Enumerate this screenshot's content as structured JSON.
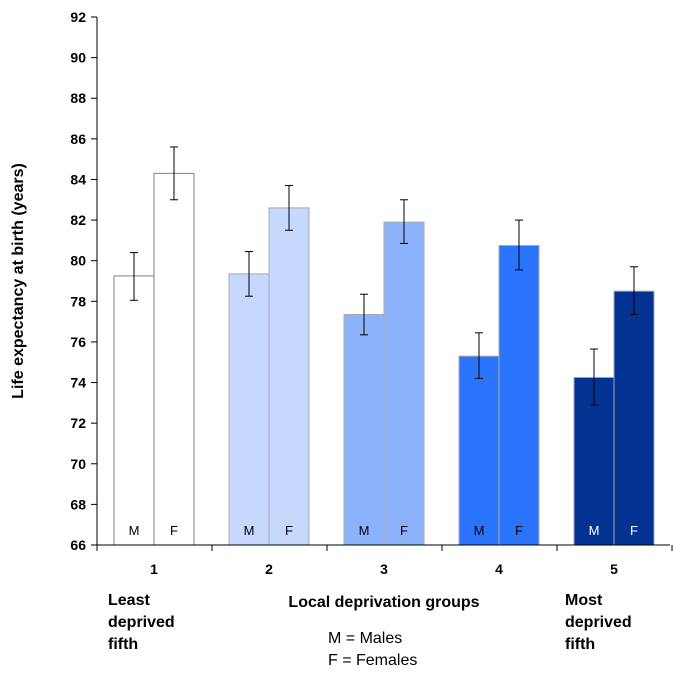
{
  "chart_data": {
    "type": "bar",
    "ylabel": "Life expectancy at birth (years)",
    "xlabel": "Local deprivation groups",
    "ylim": [
      66,
      92
    ],
    "yticks": [
      66,
      68,
      70,
      72,
      74,
      76,
      78,
      80,
      82,
      84,
      86,
      88,
      90,
      92
    ],
    "categories": [
      "1",
      "2",
      "3",
      "4",
      "5"
    ],
    "group_colors": [
      "#ffffff",
      "#c6d8fe",
      "#8db2fc",
      "#2a74fb",
      "#033293"
    ],
    "letter_colors": [
      "#000000",
      "#000000",
      "#000000",
      "#000000",
      "#ffffff"
    ],
    "series": [
      {
        "name": "M",
        "values": [
          79.25,
          79.35,
          77.35,
          75.3,
          74.25
        ],
        "error_low": [
          78.05,
          78.25,
          76.35,
          74.2,
          72.9
        ],
        "error_high": [
          80.4,
          80.45,
          78.35,
          76.45,
          75.65
        ]
      },
      {
        "name": "F",
        "values": [
          84.3,
          82.6,
          81.9,
          80.75,
          78.5
        ],
        "error_low": [
          83.0,
          81.5,
          80.85,
          79.55,
          77.35
        ],
        "error_high": [
          85.6,
          83.7,
          83.0,
          82.0,
          79.7
        ]
      }
    ],
    "annotations": {
      "least": [
        "Least",
        "deprived",
        "fifth"
      ],
      "most": [
        "Most",
        "deprived",
        "fifth"
      ],
      "legend": [
        "M = Males",
        "F = Females"
      ]
    }
  }
}
